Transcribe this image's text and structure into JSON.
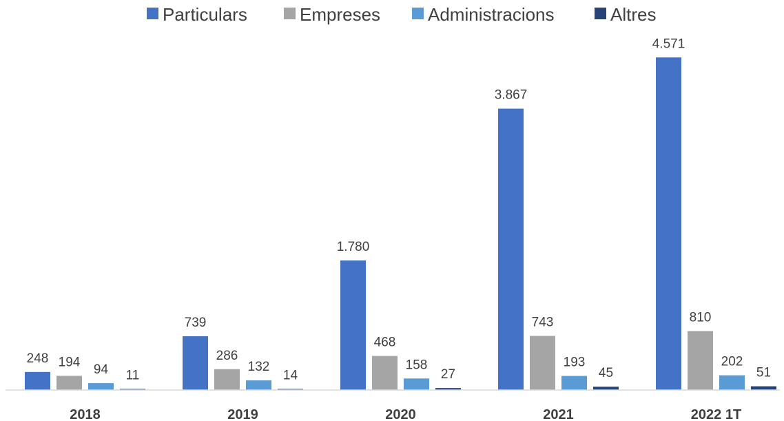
{
  "chart_data": {
    "type": "bar",
    "categories": [
      "2018",
      "2019",
      "2020",
      "2021",
      "2022 1T"
    ],
    "series": [
      {
        "name": "Particulars",
        "color": "#4472c4",
        "values": [
          248,
          739,
          1780,
          3867,
          4571
        ],
        "labels": [
          "248",
          "739",
          "1.780",
          "3.867",
          "4.571"
        ]
      },
      {
        "name": "Empreses",
        "color": "#a5a5a5",
        "values": [
          194,
          286,
          468,
          743,
          810
        ],
        "labels": [
          "194",
          "286",
          "468",
          "743",
          "810"
        ]
      },
      {
        "name": "Administracions",
        "color": "#5b9bd5",
        "values": [
          94,
          132,
          158,
          193,
          202
        ],
        "labels": [
          "94",
          "132",
          "158",
          "193",
          "202"
        ]
      },
      {
        "name": "Altres",
        "color": "#264478",
        "values": [
          11,
          14,
          27,
          45,
          51
        ],
        "labels": [
          "11",
          "14",
          "27",
          "45",
          "51"
        ]
      }
    ],
    "legend_position": "top-center",
    "grid": false,
    "title": "",
    "xlabel": "",
    "ylabel": ""
  }
}
